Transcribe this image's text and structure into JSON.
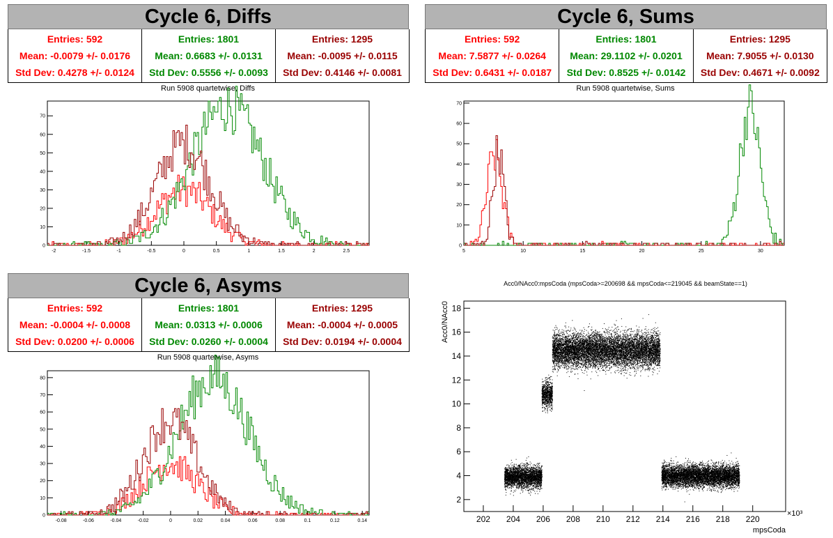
{
  "colors": {
    "red": "#ff0000",
    "green": "#008800",
    "darkred": "#990000",
    "title_bg": "#b3b3b3"
  },
  "panels": {
    "diffs": {
      "header": "Cycle 6, Diffs",
      "stats": [
        {
          "entries": "Entries: 592",
          "mean": "Mean: -0.0079 +/- 0.0176",
          "std": "Std Dev: 0.4278 +/- 0.0124"
        },
        {
          "entries": "Entries: 1801",
          "mean": "Mean: 0.6683 +/- 0.0131",
          "std": "Std Dev: 0.5556 +/- 0.0093"
        },
        {
          "entries": "Entries: 1295",
          "mean": "Mean: -0.0095 +/- 0.0115",
          "std": "Std Dev: 0.4146 +/- 0.0081"
        }
      ],
      "run_title": "Run 5908 quartetwise, Diffs"
    },
    "sums": {
      "header": "Cycle 6, Sums",
      "stats": [
        {
          "entries": "Entries: 592",
          "mean": "Mean: 7.5877 +/- 0.0264",
          "std": "Std Dev: 0.6431 +/- 0.0187"
        },
        {
          "entries": "Entries: 1801",
          "mean": "Mean: 29.1102 +/- 0.0201",
          "std": "Std Dev: 0.8525 +/- 0.0142"
        },
        {
          "entries": "Entries: 1295",
          "mean": "Mean: 7.9055 +/- 0.0130",
          "std": "Std Dev: 0.4671 +/- 0.0092"
        }
      ],
      "run_title": "Run 5908 quartetwise, Sums"
    },
    "asyms": {
      "header": "Cycle 6, Asyms",
      "stats": [
        {
          "entries": "Entries: 592",
          "mean": "Mean: -0.0004 +/- 0.0008",
          "std": "Std Dev: 0.0200 +/- 0.0006"
        },
        {
          "entries": "Entries: 1801",
          "mean": "Mean: 0.0313 +/- 0.0006",
          "std": "Std Dev: 0.0260 +/- 0.0004"
        },
        {
          "entries": "Entries: 1295",
          "mean": "Mean: -0.0004 +/- 0.0005",
          "std": "Std Dev: 0.0194 +/- 0.0004"
        }
      ],
      "run_title": "Run 5908 quartetwise, Asyms"
    },
    "scatter": {
      "title": "Acc0/NAcc0:mpsCoda (mpsCoda>=200698 && mpsCoda<=219045 && beamState==1)"
    }
  },
  "chart_data": [
    {
      "type": "histogram",
      "id": "diffs",
      "xlim": [
        -2.1,
        2.85
      ],
      "ylim": [
        0,
        78
      ],
      "xticks": [
        -2,
        -1.5,
        -1,
        -0.5,
        0,
        0.5,
        1,
        1.5,
        2,
        2.5
      ],
      "yticks": [
        0,
        10,
        20,
        30,
        40,
        50,
        60,
        70
      ],
      "series": [
        {
          "color": "red",
          "mean": -0.0079,
          "std": 0.4278,
          "peak": 30
        },
        {
          "color": "green",
          "mean": 0.6683,
          "std": 0.5556,
          "peak": 75
        },
        {
          "color": "darkred",
          "mean": -0.0095,
          "std": 0.4146,
          "peak": 55
        }
      ]
    },
    {
      "type": "histogram",
      "id": "sums",
      "xlim": [
        5,
        32
      ],
      "ylim": [
        0,
        71
      ],
      "xticks": [
        5,
        10,
        15,
        20,
        25,
        30
      ],
      "yticks": [
        0,
        10,
        20,
        30,
        40,
        50,
        60,
        70
      ],
      "series": [
        {
          "color": "red",
          "mean": 7.5877,
          "std": 0.6431,
          "peak": 44
        },
        {
          "color": "green",
          "mean": 29.1102,
          "std": 0.8525,
          "peak": 68
        },
        {
          "color": "darkred",
          "mean": 7.9055,
          "std": 0.4671,
          "peak": 47
        }
      ]
    },
    {
      "type": "histogram",
      "id": "asyms",
      "xlim": [
        -0.09,
        0.145
      ],
      "ylim": [
        0,
        84
      ],
      "xticks": [
        -0.08,
        -0.06,
        -0.04,
        -0.02,
        0,
        0.02,
        0.04,
        0.06,
        0.08,
        0.1,
        0.12,
        0.14
      ],
      "yticks": [
        0,
        10,
        20,
        30,
        40,
        50,
        60,
        70,
        80
      ],
      "series": [
        {
          "color": "red",
          "mean": -0.0004,
          "std": 0.02,
          "peak": 30
        },
        {
          "color": "green",
          "mean": 0.0313,
          "std": 0.026,
          "peak": 80
        },
        {
          "color": "darkred",
          "mean": -0.0004,
          "std": 0.0194,
          "peak": 55
        }
      ]
    },
    {
      "type": "scatter",
      "id": "scatter",
      "xlabel": "mpsCoda",
      "ylabel": "Acc0/NAcc0",
      "x_multiplier": "×10³",
      "xlim": [
        200.7,
        222.2
      ],
      "ylim": [
        1,
        18.6
      ],
      "xticks": [
        202,
        204,
        206,
        208,
        210,
        212,
        214,
        216,
        218,
        220
      ],
      "yticks": [
        2,
        4,
        6,
        8,
        10,
        12,
        14,
        16,
        18
      ],
      "clusters": [
        {
          "x_range": [
            203.4,
            205.9
          ],
          "y_center": 3.9,
          "y_spread": 0.45
        },
        {
          "x_range": [
            205.9,
            206.6
          ],
          "y_center": 10.8,
          "y_spread": 0.55
        },
        {
          "x_range": [
            206.6,
            213.8
          ],
          "y_center": 14.5,
          "y_spread": 0.7
        },
        {
          "x_range": [
            213.9,
            219.1
          ],
          "y_center": 4.0,
          "y_spread": 0.45
        }
      ]
    }
  ]
}
